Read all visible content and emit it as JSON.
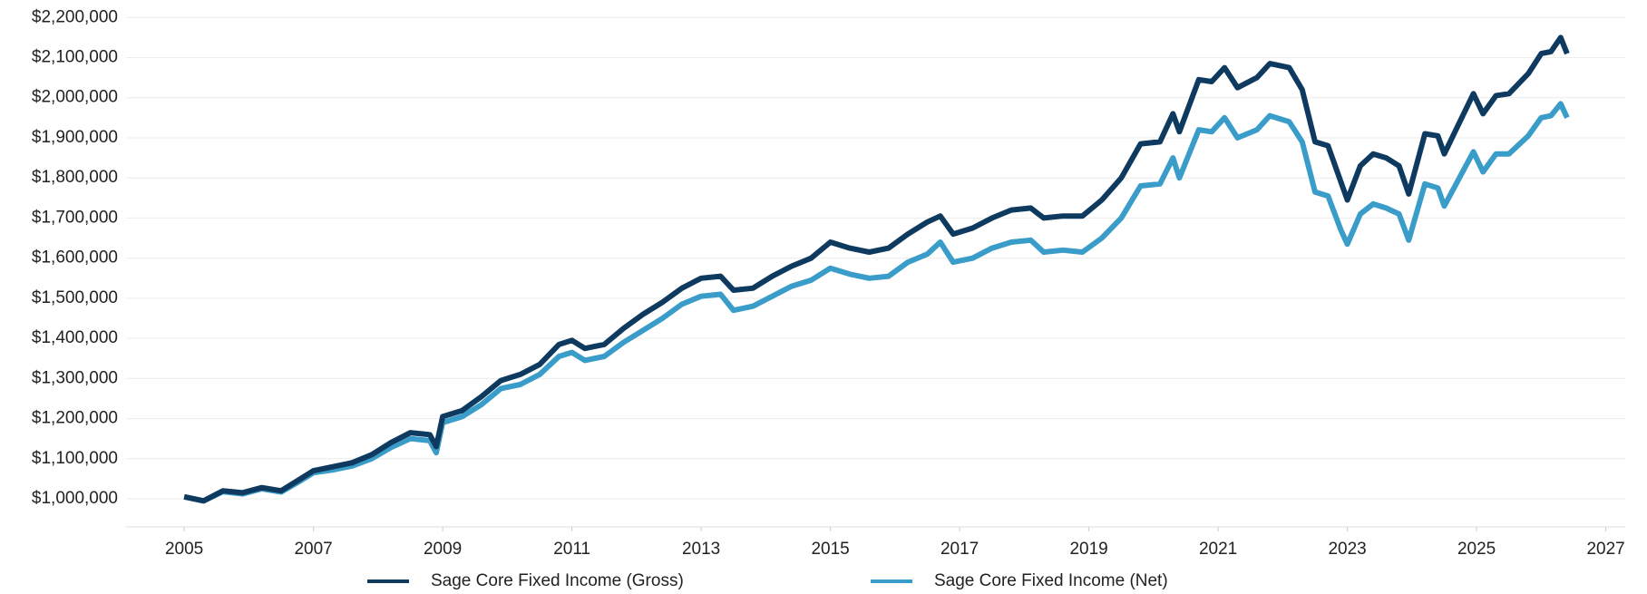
{
  "chart_data": {
    "type": "line",
    "x": [
      2005.0,
      2005.3,
      2005.6,
      2005.9,
      2006.2,
      2006.5,
      2006.8,
      2007.0,
      2007.3,
      2007.6,
      2007.9,
      2008.2,
      2008.5,
      2008.8,
      2008.9,
      2009.0,
      2009.3,
      2009.6,
      2009.9,
      2010.2,
      2010.5,
      2010.8,
      2011.0,
      2011.2,
      2011.5,
      2011.8,
      2012.1,
      2012.4,
      2012.7,
      2013.0,
      2013.3,
      2013.5,
      2013.8,
      2014.1,
      2014.4,
      2014.7,
      2015.0,
      2015.3,
      2015.6,
      2015.9,
      2016.2,
      2016.5,
      2016.7,
      2016.9,
      2017.2,
      2017.5,
      2017.8,
      2018.1,
      2018.3,
      2018.6,
      2018.9,
      2019.2,
      2019.5,
      2019.8,
      2020.1,
      2020.3,
      2020.4,
      2020.7,
      2020.9,
      2021.1,
      2021.3,
      2021.6,
      2021.8,
      2022.1,
      2022.3,
      2022.5,
      2022.7,
      2022.9,
      2023.0,
      2023.2,
      2023.4,
      2023.6,
      2023.8,
      2023.95,
      2024.2,
      2024.4,
      2024.5,
      2024.8,
      2024.95,
      2025.1,
      2025.3,
      2025.5,
      2025.8,
      2026.0,
      2026.15,
      2026.3,
      2026.4
    ],
    "series": [
      {
        "name": "Sage Core Fixed Income (Gross)",
        "color": "#0f3a60",
        "values": [
          1005000,
          995000,
          1020000,
          1015000,
          1028000,
          1020000,
          1050000,
          1070000,
          1080000,
          1090000,
          1110000,
          1140000,
          1165000,
          1160000,
          1130000,
          1205000,
          1220000,
          1255000,
          1295000,
          1310000,
          1335000,
          1385000,
          1395000,
          1375000,
          1385000,
          1425000,
          1460000,
          1490000,
          1525000,
          1550000,
          1555000,
          1520000,
          1525000,
          1555000,
          1580000,
          1600000,
          1640000,
          1625000,
          1615000,
          1625000,
          1660000,
          1690000,
          1705000,
          1660000,
          1675000,
          1700000,
          1720000,
          1725000,
          1700000,
          1705000,
          1705000,
          1745000,
          1800000,
          1885000,
          1890000,
          1960000,
          1915000,
          2045000,
          2040000,
          2075000,
          2025000,
          2050000,
          2085000,
          2075000,
          2020000,
          1890000,
          1880000,
          1790000,
          1745000,
          1830000,
          1860000,
          1850000,
          1830000,
          1760000,
          1910000,
          1905000,
          1860000,
          1960000,
          2010000,
          1960000,
          2005000,
          2010000,
          2060000,
          2110000,
          2115000,
          2150000,
          2110000
        ]
      },
      {
        "name": "Sage Core Fixed Income (Net)",
        "color": "#3a9cc8",
        "values": [
          1005000,
          995000,
          1018000,
          1012000,
          1025000,
          1017000,
          1045000,
          1065000,
          1072000,
          1082000,
          1100000,
          1128000,
          1150000,
          1145000,
          1115000,
          1190000,
          1205000,
          1235000,
          1275000,
          1285000,
          1310000,
          1355000,
          1365000,
          1345000,
          1355000,
          1390000,
          1420000,
          1450000,
          1485000,
          1505000,
          1510000,
          1470000,
          1480000,
          1505000,
          1530000,
          1545000,
          1575000,
          1560000,
          1550000,
          1555000,
          1590000,
          1610000,
          1640000,
          1590000,
          1600000,
          1625000,
          1640000,
          1645000,
          1615000,
          1620000,
          1615000,
          1650000,
          1700000,
          1780000,
          1785000,
          1850000,
          1800000,
          1920000,
          1915000,
          1950000,
          1900000,
          1920000,
          1955000,
          1940000,
          1890000,
          1765000,
          1755000,
          1670000,
          1635000,
          1710000,
          1735000,
          1725000,
          1710000,
          1645000,
          1785000,
          1775000,
          1730000,
          1820000,
          1865000,
          1815000,
          1860000,
          1860000,
          1905000,
          1950000,
          1955000,
          1985000,
          1950000
        ]
      }
    ],
    "xlim": [
      2004.1,
      2027.3
    ],
    "xticks": [
      2005,
      2007,
      2009,
      2011,
      2013,
      2015,
      2017,
      2019,
      2021,
      2023,
      2025,
      2027
    ],
    "ylim": [
      930000,
      2230000
    ],
    "yticks": [
      {
        "value": 1000000,
        "label": "$1,000,000"
      },
      {
        "value": 1100000,
        "label": "$1,100,000"
      },
      {
        "value": 1200000,
        "label": "$1,200,000"
      },
      {
        "value": 1300000,
        "label": "$1,300,000"
      },
      {
        "value": 1400000,
        "label": "$1,400,000"
      },
      {
        "value": 1500000,
        "label": "$1,500,000"
      },
      {
        "value": 1600000,
        "label": "$1,600,000"
      },
      {
        "value": 1700000,
        "label": "$1,700,000"
      },
      {
        "value": 1800000,
        "label": "$1,800,000"
      },
      {
        "value": 1900000,
        "label": "$1,900,000"
      },
      {
        "value": 2000000,
        "label": "$2,000,000"
      },
      {
        "value": 2100000,
        "label": "$2,100,000"
      },
      {
        "value": 2200000,
        "label": "$2,200,000"
      }
    ],
    "grid": true,
    "legend": "bottom"
  }
}
